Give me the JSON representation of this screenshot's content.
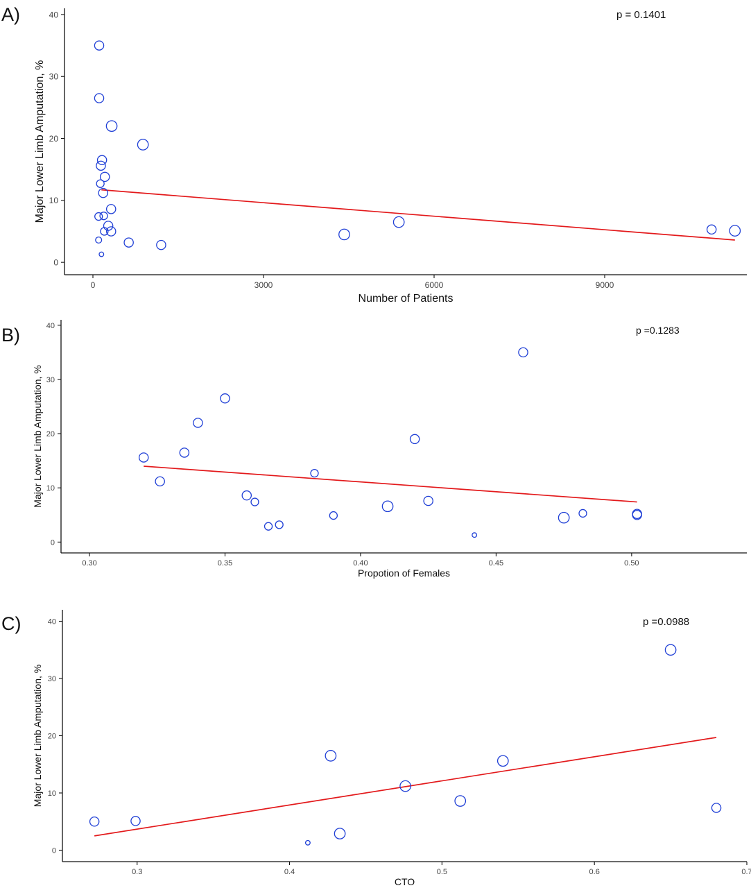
{
  "chart_data": [
    {
      "type": "scatter",
      "panel_label": "A)",
      "xlabel": "Number of Patients",
      "ylabel": "Major Lower Limb Amputation, %",
      "annotation": "p = 0.1401",
      "xlim": [
        -500,
        11500
      ],
      "ylim": [
        -2,
        41
      ],
      "xticks": [
        0,
        3000,
        6000,
        9000
      ],
      "yticks": [
        0,
        10,
        20,
        30,
        40
      ],
      "grid": false,
      "points": [
        {
          "x": 110,
          "y": 35.0,
          "w": 3
        },
        {
          "x": 110,
          "y": 26.5,
          "w": 3
        },
        {
          "x": 330,
          "y": 22.0,
          "w": 3.5
        },
        {
          "x": 880,
          "y": 19.0,
          "w": 3.5
        },
        {
          "x": 160,
          "y": 16.5,
          "w": 3
        },
        {
          "x": 140,
          "y": 15.6,
          "w": 3
        },
        {
          "x": 210,
          "y": 13.8,
          "w": 3
        },
        {
          "x": 130,
          "y": 12.7,
          "w": 2.5
        },
        {
          "x": 180,
          "y": 11.2,
          "w": 3
        },
        {
          "x": 320,
          "y": 8.6,
          "w": 3
        },
        {
          "x": 100,
          "y": 7.4,
          "w": 2.5
        },
        {
          "x": 190,
          "y": 7.5,
          "w": 2.5
        },
        {
          "x": 270,
          "y": 5.9,
          "w": 3
        },
        {
          "x": 200,
          "y": 5.0,
          "w": 2.5
        },
        {
          "x": 320,
          "y": 5.0,
          "w": 3
        },
        {
          "x": 100,
          "y": 3.6,
          "w": 2
        },
        {
          "x": 630,
          "y": 3.2,
          "w": 3
        },
        {
          "x": 1200,
          "y": 2.8,
          "w": 3
        },
        {
          "x": 150,
          "y": 1.3,
          "w": 1.5
        },
        {
          "x": 4420,
          "y": 4.5,
          "w": 3.5
        },
        {
          "x": 5380,
          "y": 6.5,
          "w": 3.5
        },
        {
          "x": 10880,
          "y": 5.3,
          "w": 3
        },
        {
          "x": 11290,
          "y": 5.1,
          "w": 3.5
        }
      ],
      "fit_line": {
        "x": [
          150,
          11290
        ],
        "y": [
          11.7,
          3.6
        ]
      }
    },
    {
      "type": "scatter",
      "panel_label": "B)",
      "xlabel": "Propotion of Females",
      "ylabel": "Major Lower Limb Amputation, %",
      "annotation": "p =0.1283",
      "xlim": [
        0.2895,
        0.5425
      ],
      "ylim": [
        -2,
        41
      ],
      "xticks": [
        0.3,
        0.35,
        0.4,
        0.45,
        0.5
      ],
      "xtick_labels": [
        "0.30",
        "0.35",
        "0.40",
        "0.45",
        "0.50"
      ],
      "yticks": [
        0,
        10,
        20,
        30,
        40
      ],
      "grid": false,
      "points": [
        {
          "x": 0.46,
          "y": 35.0,
          "w": 3
        },
        {
          "x": 0.35,
          "y": 26.5,
          "w": 3
        },
        {
          "x": 0.34,
          "y": 22.0,
          "w": 3
        },
        {
          "x": 0.42,
          "y": 19.0,
          "w": 3
        },
        {
          "x": 0.335,
          "y": 16.5,
          "w": 3
        },
        {
          "x": 0.32,
          "y": 15.6,
          "w": 3
        },
        {
          "x": 0.383,
          "y": 12.7,
          "w": 2.5
        },
        {
          "x": 0.326,
          "y": 11.2,
          "w": 3
        },
        {
          "x": 0.358,
          "y": 8.6,
          "w": 3
        },
        {
          "x": 0.361,
          "y": 7.4,
          "w": 2.5
        },
        {
          "x": 0.425,
          "y": 7.6,
          "w": 3
        },
        {
          "x": 0.41,
          "y": 6.6,
          "w": 3.5
        },
        {
          "x": 0.39,
          "y": 4.9,
          "w": 2.5
        },
        {
          "x": 0.366,
          "y": 2.9,
          "w": 2.5
        },
        {
          "x": 0.37,
          "y": 3.2,
          "w": 2.5
        },
        {
          "x": 0.442,
          "y": 1.3,
          "w": 1.5
        },
        {
          "x": 0.475,
          "y": 4.5,
          "w": 3.5
        },
        {
          "x": 0.482,
          "y": 5.3,
          "w": 2.5
        },
        {
          "x": 0.502,
          "y": 5.2,
          "w": 3
        },
        {
          "x": 0.502,
          "y": 5.0,
          "w": 3
        }
      ],
      "fit_line": {
        "x": [
          0.32,
          0.502
        ],
        "y": [
          14.0,
          7.4
        ]
      }
    },
    {
      "type": "scatter",
      "panel_label": "C)",
      "xlabel": "CTO",
      "ylabel": "Major Lower Limb Amputation, %",
      "annotation": "p =0.0988",
      "xlim": [
        0.251,
        0.7
      ],
      "ylim": [
        -2,
        42
      ],
      "xticks": [
        0.3,
        0.4,
        0.5,
        0.6,
        0.7
      ],
      "xtick_labels": [
        "0.3",
        "0.4",
        "0.5",
        "0.6",
        "0.7"
      ],
      "yticks": [
        0,
        10,
        20,
        30,
        40
      ],
      "grid": false,
      "points": [
        {
          "x": 0.65,
          "y": 35.0,
          "w": 3.5
        },
        {
          "x": 0.427,
          "y": 16.5,
          "w": 3.5
        },
        {
          "x": 0.54,
          "y": 15.6,
          "w": 3.5
        },
        {
          "x": 0.476,
          "y": 11.2,
          "w": 3.5
        },
        {
          "x": 0.512,
          "y": 8.6,
          "w": 3.5
        },
        {
          "x": 0.68,
          "y": 7.4,
          "w": 3
        },
        {
          "x": 0.272,
          "y": 5.0,
          "w": 3
        },
        {
          "x": 0.299,
          "y": 5.1,
          "w": 3
        },
        {
          "x": 0.433,
          "y": 2.9,
          "w": 3.5
        },
        {
          "x": 0.412,
          "y": 1.3,
          "w": 1.5
        }
      ],
      "fit_line": {
        "x": [
          0.272,
          0.68
        ],
        "y": [
          2.5,
          19.7
        ]
      }
    }
  ]
}
